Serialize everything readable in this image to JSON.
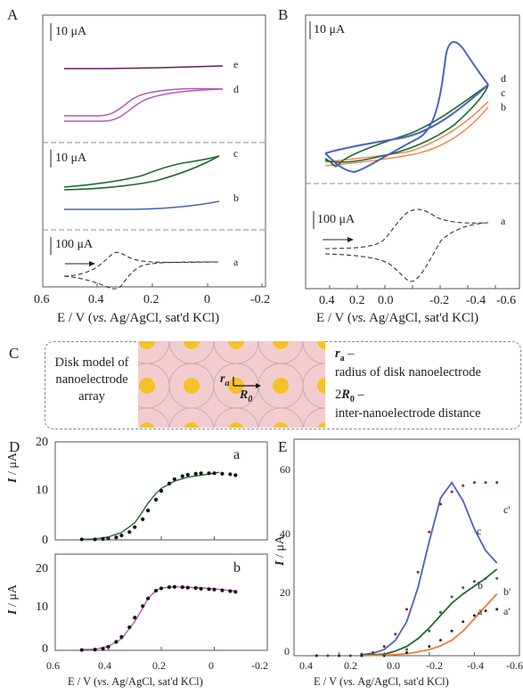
{
  "panels": {
    "A": "A",
    "B": "B",
    "C": "C",
    "D": "D",
    "E": "E"
  },
  "scale_bars": {
    "A_top": "10 μA",
    "A_mid": "10 μA",
    "A_bottom": "100 μA",
    "B_top": "10 μA",
    "B_bottom": "100 μA"
  },
  "curve_labels": {
    "A": [
      "e",
      "d",
      "c",
      "b",
      "a"
    ],
    "B": [
      "d",
      "c",
      "b",
      "a"
    ],
    "D_top": "a",
    "D_bottom": "b",
    "E": [
      "c'",
      "c",
      "b",
      "b'",
      "a",
      "a'"
    ]
  },
  "axis_label": "E / V (vs. Ag/AgCl, sat'd KCl)",
  "axis_label_parts": {
    "pre": "E / V (",
    "italic": "vs.",
    "post": " Ag/AgCl, sat'd KCl)"
  },
  "y_label": {
    "I": "I",
    "unit": " / μA"
  },
  "ticks": {
    "A_x": [
      "0.6",
      "0.4",
      "0.2",
      "0",
      "-0.2"
    ],
    "B_x": [
      "0.4",
      "0.2",
      "0.0",
      "-0.2",
      "-0.4",
      "-0.6"
    ],
    "D_x": [
      "0.6",
      "0.4",
      "0.2",
      "0",
      "-0.2"
    ],
    "D_top_y": [
      "20",
      "10",
      "0"
    ],
    "D_bottom_y": [
      "20",
      "10",
      "0"
    ],
    "E_x": [
      "0.4",
      "0.2",
      "0.0",
      "-0.2",
      "-0.4",
      "-0.6"
    ],
    "E_y": [
      "60",
      "40",
      "20",
      "0"
    ]
  },
  "panel_c": {
    "left_text": [
      "Disk model of",
      "nanoelectrode",
      "array"
    ],
    "ra_label": "r",
    "ra_sub": "a",
    "r0_label": "R",
    "r0_sub": "0",
    "right_ra": "r",
    "right_ra_sub": "a",
    "right_ra_dash": " –",
    "right_ra_desc": "radius of disk nanoelectrode",
    "right_r0_pre": "2",
    "right_r0": "R",
    "right_r0_sub": "0",
    "right_r0_dash": " –",
    "right_r0_desc": "inter-nanoelectrode distance"
  },
  "colors": {
    "purple": "#5b1f5f",
    "magenta": "#b55ab8",
    "green": "#1e6a2c",
    "blue": "#4a62c2",
    "orange": "#f07c3c",
    "dashed": "#333333",
    "dots": "#111111",
    "pink": "#f2cdcf",
    "gold": "#f5c12a"
  },
  "chart_data": [
    {
      "type": "line",
      "panel": "D-a",
      "xlabel": "E / V (vs. Ag/AgCl, sat'd KCl)",
      "ylabel": "I / μA",
      "xlim": [
        0.6,
        -0.2
      ],
      "ylim": [
        0,
        20
      ],
      "series": [
        {
          "name": "a",
          "style": "line",
          "x": [
            0.5,
            0.45,
            0.4,
            0.35,
            0.3,
            0.28,
            0.25,
            0.22,
            0.2,
            0.15,
            0.1,
            0.05,
            0.0,
            -0.02
          ],
          "y": [
            0.1,
            0.2,
            0.6,
            1.5,
            3.5,
            5,
            7.5,
            9.5,
            10.5,
            12,
            12.8,
            13.2,
            13.6,
            13.8
          ]
        },
        {
          "name": "a",
          "style": "dots",
          "x": [
            0.5,
            0.45,
            0.42,
            0.4,
            0.37,
            0.35,
            0.32,
            0.3,
            0.27,
            0.25,
            0.22,
            0.2,
            0.17,
            0.15,
            0.12,
            0.1,
            0.07,
            0.05,
            0.02,
            0.0,
            -0.03,
            -0.06,
            -0.08
          ],
          "y": [
            0.1,
            0.1,
            0.2,
            0.3,
            0.5,
            0.9,
            1.6,
            2.6,
            4.2,
            6,
            8.2,
            10,
            11.5,
            12.4,
            13,
            13.3,
            13.5,
            13.6,
            13.6,
            13.6,
            13.5,
            13.4,
            13.2
          ]
        }
      ]
    },
    {
      "type": "line",
      "panel": "D-b",
      "xlabel": "E / V (vs. Ag/AgCl, sat'd KCl)",
      "ylabel": "I / μA",
      "xlim": [
        0.6,
        -0.2
      ],
      "ylim": [
        0,
        25
      ],
      "series": [
        {
          "name": "b",
          "style": "line",
          "x": [
            0.5,
            0.45,
            0.4,
            0.35,
            0.3,
            0.27,
            0.25,
            0.22,
            0.2,
            0.15,
            0.1,
            0.05,
            0.0,
            -0.05,
            -0.08
          ],
          "y": [
            0.2,
            0.3,
            1,
            3,
            7.5,
            11,
            13.5,
            15.5,
            16.2,
            16.5,
            16.4,
            16.2,
            16,
            15.6,
            15.4
          ]
        },
        {
          "name": "b",
          "style": "dots",
          "x": [
            0.5,
            0.45,
            0.42,
            0.4,
            0.37,
            0.35,
            0.32,
            0.3,
            0.27,
            0.25,
            0.22,
            0.2,
            0.17,
            0.15,
            0.12,
            0.1,
            0.07,
            0.05,
            0.02,
            0.0,
            -0.03,
            -0.06,
            -0.08
          ],
          "y": [
            0.1,
            0.2,
            0.4,
            0.9,
            2.2,
            3.5,
            6,
            8.5,
            11.5,
            13.5,
            15.5,
            16.1,
            16.4,
            16.5,
            16.4,
            16.3,
            16.2,
            16,
            15.9,
            15.8,
            15.6,
            15.4,
            15.2
          ]
        }
      ]
    },
    {
      "type": "line",
      "panel": "E",
      "xlabel": "E / V (vs. Ag/AgCl, sat'd KCl)",
      "ylabel": "I / μA",
      "xlim": [
        0.4,
        -0.6
      ],
      "ylim": [
        0,
        70
      ],
      "series": [
        {
          "name": "c",
          "style": "line",
          "x": [
            0.1,
            0.05,
            0.0,
            -0.05,
            -0.1,
            -0.15,
            -0.2,
            -0.25,
            -0.3,
            -0.35,
            -0.4,
            -0.45,
            -0.5
          ],
          "y": [
            0.3,
            0.8,
            2,
            5,
            11,
            22,
            37,
            51,
            56,
            50,
            41,
            34,
            30
          ]
        },
        {
          "name": "b",
          "style": "line",
          "x": [
            0.1,
            0.0,
            -0.05,
            -0.1,
            -0.15,
            -0.2,
            -0.25,
            -0.3,
            -0.35,
            -0.4,
            -0.45,
            -0.5
          ],
          "y": [
            0.1,
            0.5,
            1.5,
            3,
            5.5,
            9,
            13,
            17,
            20,
            22.5,
            25,
            28
          ]
        },
        {
          "name": "a",
          "style": "line",
          "x": [
            0.1,
            0.0,
            -0.1,
            -0.15,
            -0.2,
            -0.25,
            -0.3,
            -0.35,
            -0.4,
            -0.45,
            -0.5
          ],
          "y": [
            0,
            0.2,
            0.6,
            1.2,
            2,
            3.2,
            5,
            8,
            12,
            16,
            20
          ]
        },
        {
          "name": "c'",
          "style": "dots",
          "x": [
            0.3,
            0.25,
            0.2,
            0.15,
            0.1,
            0.05,
            0.0,
            -0.05,
            -0.1,
            -0.15,
            -0.2,
            -0.25,
            -0.3,
            -0.35,
            -0.4,
            -0.45,
            -0.5
          ],
          "y": [
            0,
            0,
            0,
            0,
            0.5,
            1,
            3,
            7,
            15,
            27,
            40,
            49,
            53,
            55,
            56,
            56,
            56
          ]
        },
        {
          "name": "b'",
          "style": "dots",
          "x": [
            0.3,
            0.2,
            0.1,
            0.0,
            -0.1,
            -0.2,
            -0.25,
            -0.3,
            -0.35,
            -0.4,
            -0.45,
            -0.5
          ],
          "y": [
            0,
            0,
            0,
            0,
            2,
            8,
            14,
            19,
            22,
            24,
            25,
            25
          ]
        },
        {
          "name": "a'",
          "style": "dots",
          "x": [
            0.3,
            0.2,
            0.1,
            0.0,
            -0.1,
            -0.2,
            -0.25,
            -0.3,
            -0.35,
            -0.4,
            -0.45,
            -0.5
          ],
          "y": [
            0,
            0,
            0,
            0,
            1,
            3,
            5,
            8,
            11,
            13,
            14.5,
            15
          ]
        }
      ]
    }
  ]
}
